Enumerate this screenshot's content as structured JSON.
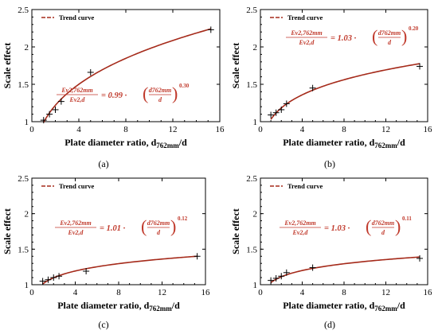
{
  "chart_data": [
    {
      "type": "line",
      "panel_label": "(a)",
      "xlabel": "Plate diameter ratio, d762mm/d",
      "ylabel": "Scale effect",
      "xlim": [
        0,
        16
      ],
      "ylim": [
        1,
        2.5
      ],
      "xticks": [
        0,
        4,
        8,
        12,
        16
      ],
      "yticks": [
        1,
        1.5,
        2,
        2.5
      ],
      "legend": "Trend curve",
      "legend_position": "top-left",
      "equation": {
        "lhs_num": "Ev2,762mm",
        "lhs_den": "Ev2,d",
        "coef": "0.99",
        "exponent": "0.30"
      },
      "equation_position": "lower-right",
      "curve": {
        "a": 0.99,
        "b": 0.3
      },
      "points": [
        {
          "x": 1.0,
          "y": 1.02
        },
        {
          "x": 1.5,
          "y": 1.1
        },
        {
          "x": 2.0,
          "y": 1.16
        },
        {
          "x": 2.5,
          "y": 1.27
        },
        {
          "x": 5.0,
          "y": 1.66
        },
        {
          "x": 15.24,
          "y": 2.23
        }
      ]
    },
    {
      "type": "line",
      "panel_label": "(b)",
      "xlabel": "Plate diameter ratio, d762mm/d",
      "ylabel": "Scale effect",
      "xlim": [
        0,
        16
      ],
      "ylim": [
        1,
        2.5
      ],
      "xticks": [
        0,
        4,
        8,
        12,
        16
      ],
      "yticks": [
        1,
        1.5,
        2,
        2.5
      ],
      "legend": "Trend curve",
      "legend_position": "top-left",
      "equation": {
        "lhs_num": "Ev2,762mm",
        "lhs_den": "Ev2,d",
        "coef": "1.03",
        "exponent": "0.20"
      },
      "equation_position": "upper-middle",
      "curve": {
        "a": 1.03,
        "b": 0.2
      },
      "points": [
        {
          "x": 1.0,
          "y": 1.09
        },
        {
          "x": 1.5,
          "y": 1.12
        },
        {
          "x": 2.0,
          "y": 1.16
        },
        {
          "x": 2.5,
          "y": 1.24
        },
        {
          "x": 5.0,
          "y": 1.45
        },
        {
          "x": 15.24,
          "y": 1.74
        }
      ]
    },
    {
      "type": "line",
      "panel_label": "(c)",
      "xlabel": "Plate diameter ratio, d762mm/d",
      "ylabel": "Scale effect",
      "xlim": [
        0,
        16
      ],
      "ylim": [
        1,
        2.5
      ],
      "xticks": [
        0,
        4,
        8,
        12,
        16
      ],
      "yticks": [
        1,
        1.5,
        2,
        2.5
      ],
      "legend": "Trend curve",
      "legend_position": "top-left",
      "equation": {
        "lhs_num": "Ev2,762mm",
        "lhs_den": "Ev2,d",
        "coef": "1.01",
        "exponent": "0.12"
      },
      "equation_position": "middle",
      "curve": {
        "a": 1.01,
        "b": 0.12
      },
      "points": [
        {
          "x": 1.0,
          "y": 1.05
        },
        {
          "x": 1.5,
          "y": 1.07
        },
        {
          "x": 2.0,
          "y": 1.1
        },
        {
          "x": 2.5,
          "y": 1.12
        },
        {
          "x": 5.0,
          "y": 1.19
        },
        {
          "x": 15.24,
          "y": 1.4
        }
      ]
    },
    {
      "type": "line",
      "panel_label": "(d)",
      "xlabel": "Plate diameter ratio, d762mm/d",
      "ylabel": "Scale effect",
      "xlim": [
        0,
        16
      ],
      "ylim": [
        1,
        2.5
      ],
      "xticks": [
        0,
        4,
        8,
        12,
        16
      ],
      "yticks": [
        1,
        1.5,
        2,
        2.5
      ],
      "legend": "Trend curve",
      "legend_position": "top-left",
      "equation": {
        "lhs_num": "Ev2,762mm",
        "lhs_den": "Ev2,d",
        "coef": "1.03",
        "exponent": "0.11"
      },
      "equation_position": "middle",
      "curve": {
        "a": 1.03,
        "b": 0.11
      },
      "points": [
        {
          "x": 1.0,
          "y": 1.06
        },
        {
          "x": 1.5,
          "y": 1.09
        },
        {
          "x": 2.0,
          "y": 1.12
        },
        {
          "x": 2.5,
          "y": 1.17
        },
        {
          "x": 5.0,
          "y": 1.24
        },
        {
          "x": 15.24,
          "y": 1.37
        }
      ]
    }
  ]
}
